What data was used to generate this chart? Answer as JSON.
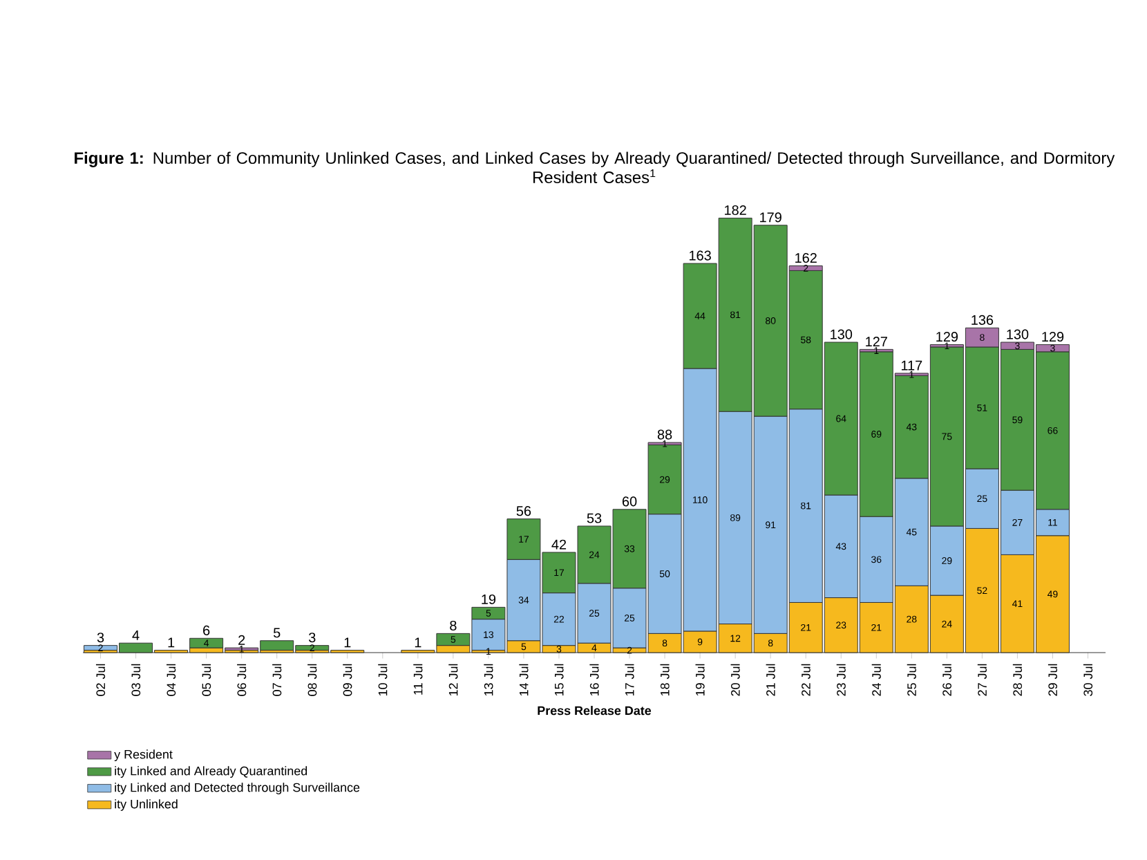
{
  "chart_data": {
    "type": "bar",
    "stacked": true,
    "title": "**Figure 1:** Number of Community Unlinked Cases, and Linked Cases by Already Quarantined/ Detected through Surveillance, and Dormitory Resident Cases$^{1}$",
    "xlabel": "Press Release Date",
    "categories": [
      "02 Jul",
      "03 Jul",
      "04 Jul",
      "05 Jul",
      "06 Jul",
      "07 Jul",
      "08 Jul",
      "09 Jul",
      "10 Jul",
      "11 Jul",
      "12 Jul",
      "13 Jul",
      "14 Jul",
      "15 Jul",
      "16 Jul",
      "17 Jul",
      "18 Jul",
      "19 Jul",
      "20 Jul",
      "21 Jul",
      "22 Jul",
      "23 Jul",
      "24 Jul",
      "25 Jul",
      "26 Jul",
      "27 Jul",
      "28 Jul",
      "29 Jul",
      "30 Jul"
    ],
    "series": [
      {
        "name": "ity Unlinked",
        "color": "#f6b91e",
        "values": [
          1,
          null,
          1,
          2,
          1,
          1,
          1,
          1,
          null,
          1,
          3,
          1,
          5,
          3,
          4,
          2,
          8,
          9,
          12,
          8,
          21,
          23,
          21,
          28,
          24,
          52,
          41,
          49,
          null
        ],
        "value_labels": [
          null,
          null,
          null,
          null,
          null,
          null,
          null,
          null,
          null,
          null,
          null,
          "1",
          "5",
          "3",
          "4",
          "2",
          "8",
          "9",
          "12",
          "8",
          "21",
          "23",
          "21",
          "28",
          "24",
          "52",
          "41",
          "49",
          null
        ]
      },
      {
        "name": "ity Linked and Detected through Surveillance",
        "color": "#8fbce6",
        "values": [
          2,
          null,
          null,
          null,
          null,
          null,
          null,
          null,
          null,
          null,
          null,
          13,
          34,
          22,
          25,
          25,
          50,
          110,
          89,
          91,
          81,
          43,
          36,
          45,
          29,
          25,
          27,
          11,
          null
        ],
        "value_labels": [
          "2",
          null,
          null,
          null,
          null,
          null,
          null,
          null,
          null,
          null,
          null,
          "13",
          "34",
          "22",
          "25",
          "25",
          "50",
          "110",
          "89",
          "91",
          "81",
          "43",
          "36",
          "45",
          "29",
          "25",
          "27",
          "11",
          null
        ]
      },
      {
        "name": "ity Linked and Already Quarantined",
        "color": "#4e9a45",
        "values": [
          null,
          4,
          null,
          4,
          null,
          4,
          2,
          null,
          null,
          null,
          5,
          5,
          17,
          17,
          24,
          33,
          29,
          44,
          81,
          80,
          58,
          64,
          69,
          43,
          75,
          51,
          59,
          66,
          null
        ],
        "value_labels": [
          null,
          null,
          null,
          "4",
          null,
          null,
          "2",
          null,
          null,
          null,
          "5",
          "5",
          "17",
          "17",
          "24",
          "33",
          "29",
          "44",
          "81",
          "80",
          "58",
          "64",
          "69",
          "43",
          "75",
          "51",
          "59",
          "66",
          null
        ]
      },
      {
        "name": "y Resident",
        "color": "#a874a8",
        "values": [
          null,
          null,
          null,
          null,
          1,
          null,
          null,
          null,
          null,
          null,
          null,
          null,
          null,
          null,
          null,
          null,
          1,
          null,
          null,
          null,
          2,
          null,
          1,
          1,
          1,
          8,
          3,
          3,
          null
        ],
        "value_labels": [
          null,
          null,
          null,
          null,
          "1",
          null,
          null,
          null,
          null,
          null,
          null,
          null,
          null,
          null,
          null,
          null,
          "1",
          null,
          null,
          null,
          "2",
          null,
          "1",
          "1",
          "1",
          "8",
          "3",
          "3",
          null
        ]
      }
    ],
    "totals": [
      "3",
      "4",
      "1",
      "6",
      "2",
      "5",
      "3",
      "1",
      null,
      "1",
      "8",
      "19",
      "56",
      "42",
      "53",
      "60",
      "88",
      "163",
      "182",
      "179",
      "162",
      "130",
      "127",
      "117",
      "129",
      "136",
      "130",
      "129",
      null
    ],
    "tick_labels": "x",
    "legend": "bottom left"
  }
}
